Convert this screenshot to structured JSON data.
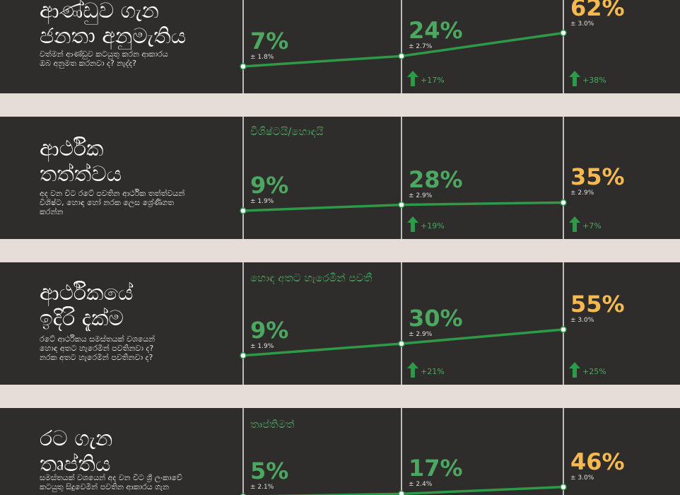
{
  "colors": {
    "background": "#2f2d2c",
    "separator": "#e6dcd8",
    "line": "#2e9a47",
    "green_text": "#4ca860",
    "highlight": "#f5b94f",
    "divider": "#bdbdbd"
  },
  "panels": [
    {
      "title": "ආණ්ඩුව ගැන\nජනතා අනුමැතිය",
      "description": "වත්මන් ආණ්ඩුව කටයුතු කරන ආකාරය\nඔබ අනුමත කරනවා ද? නැද්ද?",
      "series_label": "",
      "change_icon": "arrow-up-icon"
    },
    {
      "title": "ආර්ථික\nතත්ත්වය",
      "description": "අද වන විට රටේ පවතින ආර්ථික තත්ත්වයන්\nවිශිෂ්ට, හොඳ හෝ නරක ලෙස ශ්‍රේණිගත\nකරන්න",
      "series_label": "විශිෂ්ටයි/හොඳයි",
      "change_icon": "arrow-up-icon"
    },
    {
      "title": "ආර්ථිකයේ\nඉදිරි දැක්ම",
      "description": "රටේ ආර්ථිකය සමස්තයක් වශයෙන්\nහොඳ අතට හැරෙමින් පවතිනවා ද?\nනරක අතට හැරෙමින් පවතිනවා ද?",
      "series_label": "හොඳ අතට හැරෙමින් පවතී",
      "change_icon": "arrow-up-icon"
    },
    {
      "title": "රට ගැන\nතෘප්තිය",
      "description": "සමස්තයක් වශයෙන් අද වන විට ශ්‍රී ලංකාවේ\nකටයුතු සිදුවෙමින් පවතින ආකාරය ගැන",
      "series_label": "තෘප්තිමත්",
      "change_icon": "arrow-up-icon"
    }
  ],
  "chart_data": [
    {
      "type": "line",
      "title": "ආණ්ඩුව ගැන ජනතා අනුමැතිය",
      "values": [
        7,
        24,
        62
      ],
      "labels": [
        "7%",
        "24%",
        "62%"
      ],
      "errors": [
        "± 1.8%",
        "± 2.7%",
        "± 3.0%"
      ],
      "changes": [
        null,
        "+17%",
        "+38%"
      ],
      "ylim": [
        0,
        70
      ]
    },
    {
      "type": "line",
      "title": "ආර්ථික තත්ත්වය",
      "values": [
        9,
        28,
        35
      ],
      "labels": [
        "9%",
        "28%",
        "35%"
      ],
      "errors": [
        "± 1.9%",
        "± 2.9%",
        "± 2.9%"
      ],
      "changes": [
        null,
        "+19%",
        "+7%"
      ],
      "ylim": [
        0,
        70
      ]
    },
    {
      "type": "line",
      "title": "ආර්ථිකයේ ඉදිරි දැක්ම",
      "values": [
        9,
        30,
        55
      ],
      "labels": [
        "9%",
        "30%",
        "55%"
      ],
      "errors": [
        "± 1.9%",
        "± 2.9%",
        "± 3.0%"
      ],
      "changes": [
        null,
        "+21%",
        "+25%"
      ],
      "ylim": [
        0,
        70
      ]
    },
    {
      "type": "line",
      "title": "රට ගැන තෘප්තිය",
      "values": [
        5,
        17,
        46
      ],
      "labels": [
        "5%",
        "17%",
        "46%"
      ],
      "errors": [
        "± 2.1%",
        "± 2.4%",
        "± 3.0%"
      ],
      "changes": [
        null,
        null,
        null
      ],
      "ylim": [
        0,
        70
      ]
    }
  ]
}
